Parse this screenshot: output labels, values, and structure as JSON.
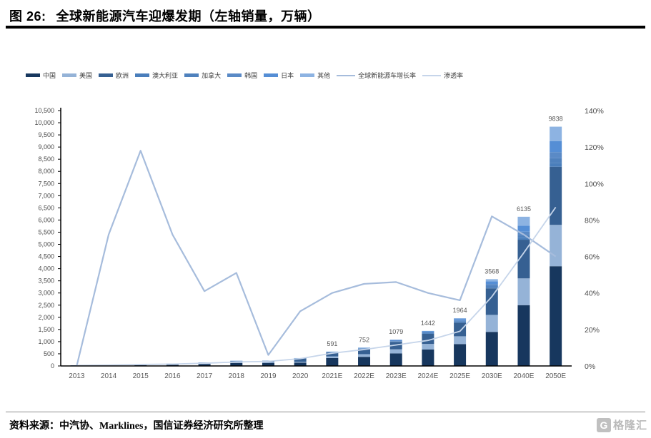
{
  "figure": {
    "title_prefix": "图 26:",
    "title": "全球新能源汽车迎爆发期（左轴销量，万辆）",
    "source_label": "资料来源：",
    "source_text": "中汽协、Marklines，国信证券经济研究所整理",
    "logo_letter": "G",
    "logo_text": "格隆汇"
  },
  "colors": {
    "title_rule": "#000000",
    "axis": "#000000",
    "axis_label": "#4a4a4a",
    "bar_value_label": "#595959",
    "footer_rule": "#8c8c8c",
    "watermark": "#c0c0c0"
  },
  "chart_data": {
    "type": "combo: stacked bar (left axis, 万辆) + line (right axis, %)",
    "title": "全球新能源汽车迎爆发期（左轴销量，万辆）",
    "grid": false,
    "legend_position": "top",
    "categories": [
      "2013",
      "2014",
      "2015",
      "2016",
      "2017",
      "2018",
      "2019",
      "2020",
      "2021E",
      "2022E",
      "2023E",
      "2024E",
      "2025E",
      "2030E",
      "2040E",
      "2050E"
    ],
    "left_axis": {
      "min": 0,
      "max": 10500,
      "step": 500
    },
    "right_axis": {
      "min": 0,
      "max": 140,
      "step": 20,
      "suffix": "%"
    },
    "bar_total_labels": [
      "",
      "",
      "",
      "",
      "",
      "",
      "",
      "",
      "591",
      "752",
      "1079",
      "1442",
      "1964",
      "3568",
      "6135",
      "9838"
    ],
    "bar_series": [
      {
        "id": "china",
        "name": "中国",
        "color": "#17375E",
        "values": [
          2,
          8,
          33,
          51,
          78,
          124,
          121,
          137,
          325,
          375,
          515,
          675,
          900,
          1400,
          2500,
          4100
        ]
      },
      {
        "id": "usa",
        "name": "美国",
        "color": "#95B3D7",
        "values": [
          10,
          12,
          12,
          16,
          20,
          36,
          33,
          33,
          70,
          110,
          170,
          230,
          320,
          700,
          1100,
          1700
        ]
      },
      {
        "id": "europe",
        "name": "欧洲",
        "color": "#366092",
        "values": [
          6,
          11,
          19,
          22,
          37,
          38,
          54,
          137,
          155,
          205,
          305,
          415,
          555,
          1090,
          1590,
          2390
        ]
      },
      {
        "id": "australia",
        "name": "澳大利亚",
        "color": "#4A7EBB",
        "values": [
          0.3,
          0.5,
          0.5,
          0.7,
          1,
          2,
          2,
          3,
          5,
          8,
          11,
          16,
          22,
          40,
          80,
          150
        ]
      },
      {
        "id": "canada",
        "name": "加拿大",
        "color": "#4F81BD",
        "values": [
          0.5,
          1,
          1,
          1.3,
          2,
          4,
          4,
          5,
          9,
          14,
          20,
          28,
          38,
          70,
          120,
          200
        ]
      },
      {
        "id": "korea",
        "name": "韩国",
        "color": "#5A8AC6",
        "values": [
          0.2,
          0.5,
          0.5,
          1,
          1.5,
          3,
          3,
          4,
          10,
          14,
          20,
          28,
          38,
          70,
          130,
          250
        ]
      },
      {
        "id": "japan",
        "name": "日本",
        "color": "#558ED5",
        "values": [
          0.8,
          1.5,
          1.5,
          1.5,
          2,
          3,
          3,
          4,
          12,
          22,
          30,
          42,
          58,
          110,
          250,
          450
        ]
      },
      {
        "id": "others",
        "name": "其他",
        "color": "#8DB3E2",
        "values": [
          0.2,
          0.5,
          0.5,
          0.5,
          0.5,
          2,
          1,
          1,
          5,
          4,
          8,
          8,
          33,
          88,
          365,
          598
        ]
      }
    ],
    "line_series": [
      {
        "id": "growth-rate",
        "name": "全球新能源车增长率",
        "color": "#A6BCDC",
        "axis": "right",
        "width": 2.2,
        "values": [
          0,
          72,
          118,
          72,
          41,
          51,
          6,
          30,
          40,
          45,
          46,
          40,
          36,
          82,
          72,
          60
        ]
      },
      {
        "id": "penetration-rate",
        "name": "渗透率",
        "color": "#C6D5EA",
        "axis": "right",
        "width": 1.8,
        "values": [
          0.3,
          0.5,
          0.8,
          1,
          1.5,
          2.2,
          2.5,
          4,
          7,
          9,
          11.5,
          14,
          19,
          38,
          62,
          87
        ]
      }
    ]
  }
}
